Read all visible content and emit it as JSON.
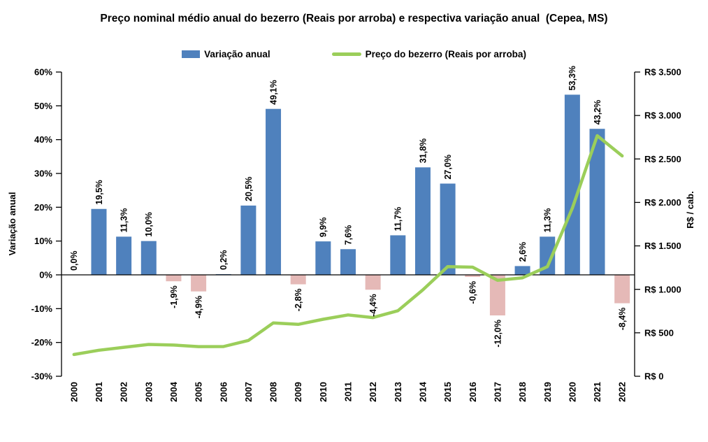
{
  "title": "Preço nominal médio anual do bezerro (Reais por arroba) e respectiva variação anual  (Cepea, MS)",
  "legend": [
    {
      "label": "Variação anual",
      "type": "bar"
    },
    {
      "label": "Preço do bezerro (Reais por arroba)",
      "type": "line"
    }
  ],
  "colors": {
    "bar_positive": "#4f81bd",
    "bar_negative": "#e5b9b7",
    "line": "#9bce5a",
    "axis": "#000000"
  },
  "left_axis": {
    "title": "Variação anual",
    "tick_labels": [
      "60%",
      "50%",
      "40%",
      "30%",
      "20%",
      "10%",
      "0%",
      "-10%",
      "-20%",
      "-30%"
    ],
    "min": -30,
    "max": 60,
    "step": 10
  },
  "right_axis": {
    "title": "R$ / cab.",
    "tick_labels": [
      "R$ 3.500",
      "R$ 3.000",
      "R$ 2.500",
      "R$ 2.000",
      "R$ 1.500",
      "R$ 1.000",
      "R$ 500",
      "R$ 0"
    ],
    "min": 0,
    "max": 3500,
    "step": 500
  },
  "chart_data": {
    "type": "bar+line combo",
    "title": "Preço nominal médio anual do bezerro (Reais por arroba) e respectiva variação anual  (Cepea, MS)",
    "categories": [
      "2000",
      "2001",
      "2002",
      "2003",
      "2004",
      "2005",
      "2006",
      "2007",
      "2008",
      "2009",
      "2010",
      "2011",
      "2012",
      "2013",
      "2014",
      "2015",
      "2016",
      "2017",
      "2018",
      "2019",
      "2020",
      "2021",
      "2022"
    ],
    "series": [
      {
        "name": "Variação anual",
        "type": "bar",
        "axis": "left",
        "unit": "%",
        "values": [
          0.0,
          19.5,
          11.3,
          10.0,
          -1.9,
          -4.9,
          0.2,
          20.5,
          49.1,
          -2.8,
          9.9,
          7.6,
          -4.4,
          11.7,
          31.8,
          27.0,
          -0.6,
          -12.0,
          2.6,
          11.3,
          53.3,
          43.2,
          -8.4
        ],
        "labels": [
          "0,0%",
          "19,5%",
          "11,3%",
          "10,0%",
          "-1,9%",
          "-4,9%",
          "0,2%",
          "20,5%",
          "49,1%",
          "-2,8%",
          "9,9%",
          "7,6%",
          "-4,4%",
          "11,7%",
          "31,8%",
          "27,0%",
          "-0,6%",
          "-12,0%",
          "2,6%",
          "11,3%",
          "53,3%",
          "43,2%",
          "-8,4%"
        ],
        "positive_color": "#4f81bd",
        "negative_color": "#e5b9b7"
      },
      {
        "name": "Preço do bezerro (Reais por arroba)",
        "type": "line",
        "axis": "right",
        "unit": "R$/cab.",
        "values": [
          250,
          299,
          333,
          366,
          359,
          341,
          342,
          412,
          614,
          597,
          656,
          706,
          675,
          754,
          994,
          1262,
          1255,
          1104,
          1133,
          1261,
          1933,
          2768,
          2535
        ],
        "color": "#9bce5a"
      }
    ],
    "xlabel": "",
    "ylabel_left": "Variação anual",
    "ylabel_right": "R$ / cab.",
    "ylim_left": [
      -30,
      60
    ],
    "ylim_right": [
      0,
      3500
    ],
    "grid": false,
    "legend_position": "top"
  }
}
